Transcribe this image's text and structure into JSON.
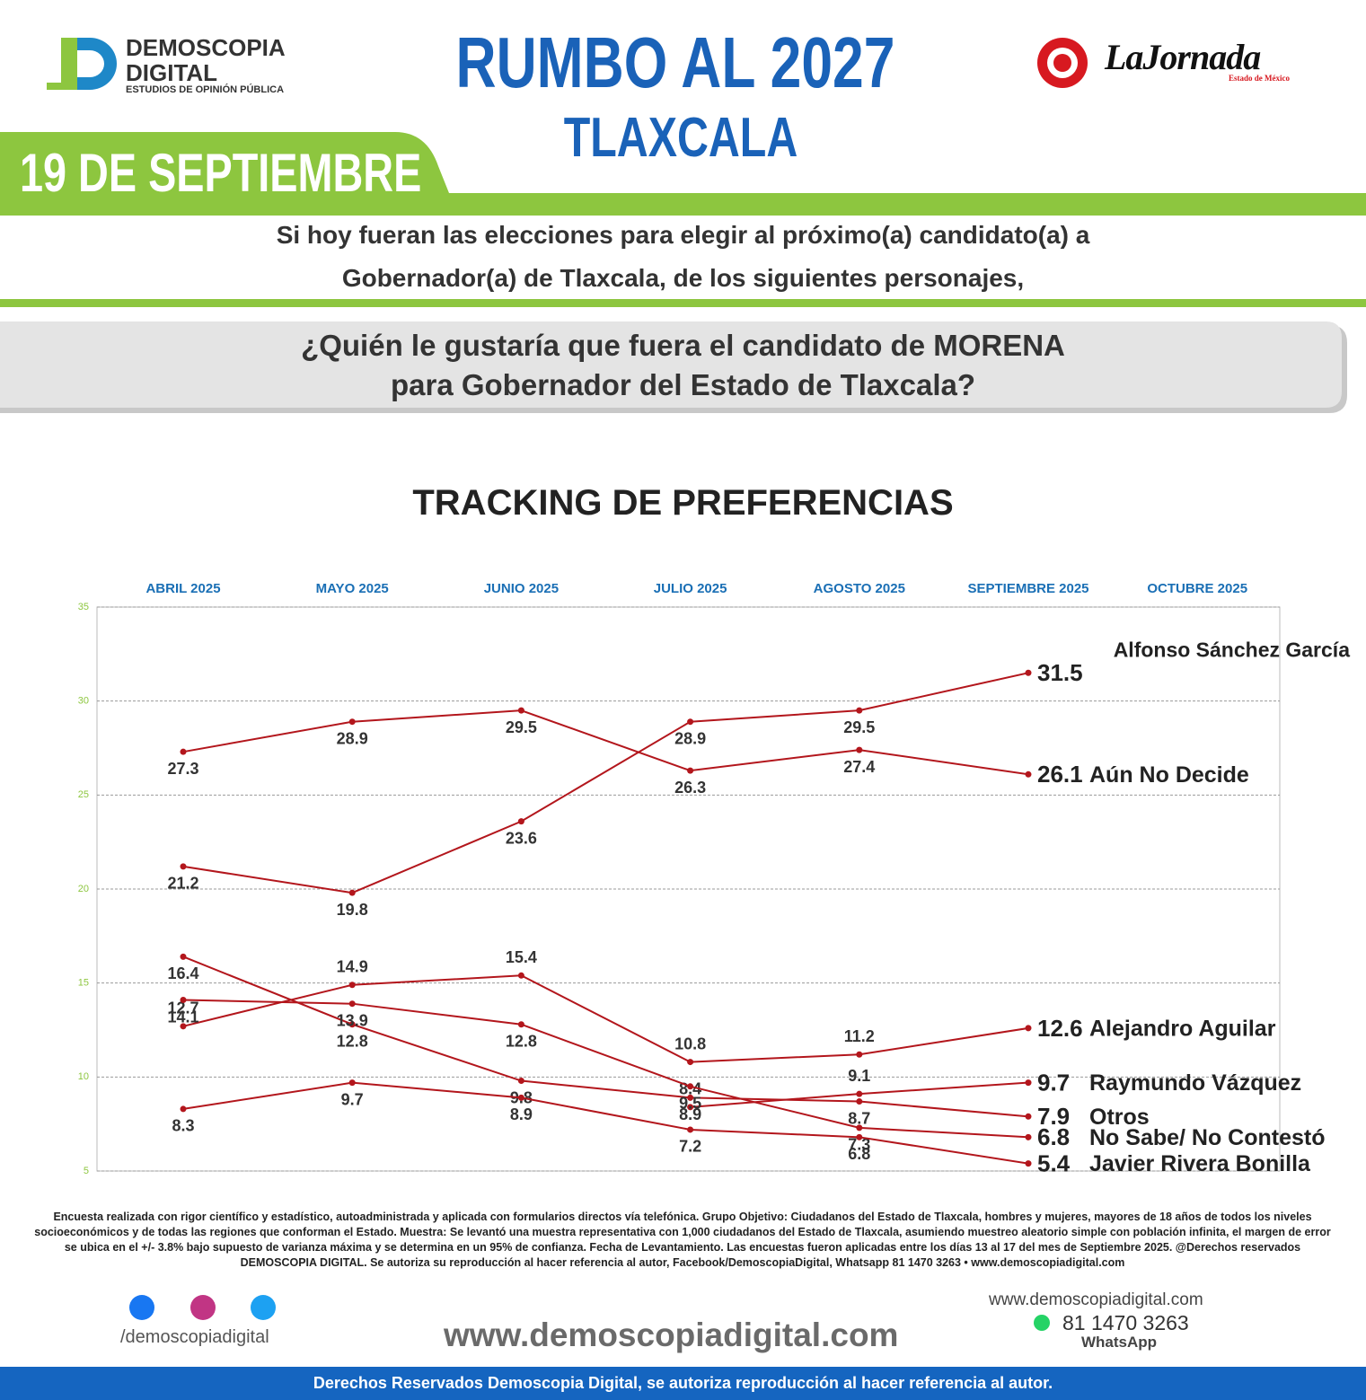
{
  "header": {
    "logo_name": "DEMOSCOPIA",
    "logo_name2": "DIGITAL",
    "logo_tagline": "ESTUDIOS DE OPINIÓN PÚBLICA",
    "title": "RUMBO AL 2027",
    "subtitle": "TLAXCALA",
    "date": "19 DE SEPTIEMBRE",
    "partner": "LaJornada",
    "partner_region": "Estado de México"
  },
  "intro": [
    "Si hoy fueran las elecciones para elegir al próximo(a) candidato(a) a",
    "Gobernador(a) de Tlaxcala, de los siguientes personajes,"
  ],
  "question": [
    "¿Quién le gustaría que fuera el candidato de MORENA",
    "para Gobernador del Estado de Tlaxcala?"
  ],
  "chart_data": {
    "type": "line",
    "title": "TRACKING DE PREFERENCIAS",
    "categories": [
      "ABRIL 2025",
      "MAYO 2025",
      "JUNIO 2025",
      "JULIO 2025",
      "AGOSTO 2025",
      "SEPTIEMBRE 2025",
      "OCTUBRE 2025"
    ],
    "ylim": [
      5,
      35
    ],
    "yticks": [
      5,
      10,
      15,
      20,
      25,
      30,
      35
    ],
    "grid": true,
    "series": [
      {
        "name": "Alfonso Sánchez García",
        "color": "#b3161c",
        "values": [
          21.2,
          19.8,
          23.6,
          28.9,
          29.5,
          31.5,
          null
        ]
      },
      {
        "name": "Aún No Decide",
        "color": "#b3161c",
        "values": [
          27.3,
          28.9,
          29.5,
          26.3,
          27.4,
          26.1,
          null
        ]
      },
      {
        "name": "Alejandro Aguilar",
        "color": "#b3161c",
        "values": [
          12.7,
          14.9,
          15.4,
          10.8,
          11.2,
          12.6,
          null
        ]
      },
      {
        "name": "Raymundo Vázquez",
        "color": "#b3161c",
        "values": [
          null,
          null,
          null,
          8.4,
          9.1,
          9.7,
          null
        ]
      },
      {
        "name": "Otros",
        "color": "#b3161c",
        "values": [
          16.4,
          12.8,
          9.8,
          8.9,
          8.7,
          7.9,
          null
        ]
      },
      {
        "name": "No Sabe/ No Contestó",
        "color": "#b3161c",
        "values": [
          14.1,
          13.9,
          12.8,
          9.5,
          7.3,
          6.8,
          null
        ]
      },
      {
        "name": "Javier Rivera Bonilla",
        "color": "#b3161c",
        "values": [
          8.3,
          9.7,
          8.9,
          7.2,
          6.8,
          5.4,
          null
        ]
      }
    ]
  },
  "footnote": "Encuesta realizada con rigor científico y estadístico, autoadministrada y aplicada con formularios directos vía telefónica. Grupo Objetivo: Ciudadanos del Estado de Tlaxcala, hombres y mujeres, mayores de 18 años de todos los niveles socioeconómicos y de todas las regiones que conforman el Estado. Muestra: Se levantó una muestra representativa con 1,000 ciudadanos del Estado de Tlaxcala, asumiendo muestreo aleatorio simple con población infinita, el margen de error se ubica en el +/- 3.8% bajo supuesto de varianza máxima y se determina en un 95% de confianza. Fecha de Levantamiento. Las encuestas fueron aplicadas entre los días 13 al 17 del mes de Septiembre 2025. @Derechos reservados DEMOSCOPIA DIGITAL. Se autoriza su reproducción al hacer referencia al autor, Facebook/DemoscopiaDigital, Whatsapp 81 1470 3263 • www.demoscopiadigital.com",
  "footer": {
    "social_handle": "/demoscopiadigital",
    "website": "www.demoscopiadigital.com",
    "contact_website": "www.demoscopiadigital.com",
    "phone": "81 1470 3263",
    "phone_label": "WhatsApp",
    "rights": "Derechos Reservados Demoscopia Digital, se autoriza reproducción al hacer referencia al autor."
  }
}
